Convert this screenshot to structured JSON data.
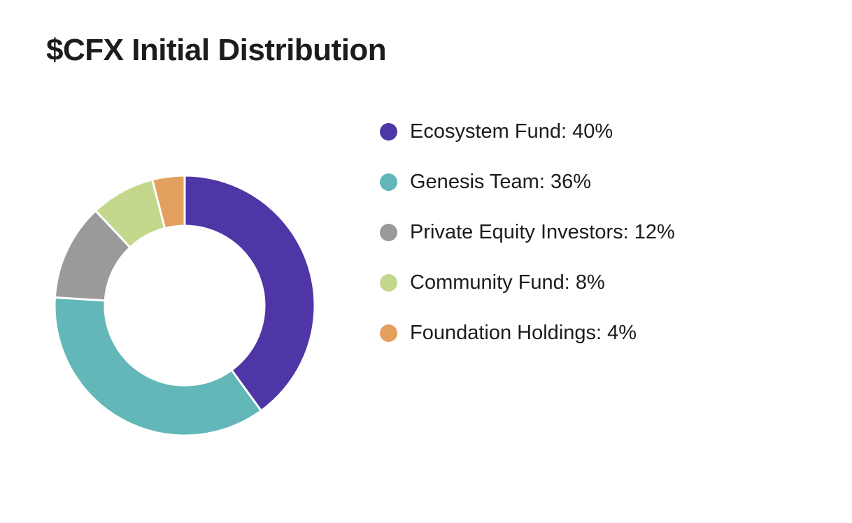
{
  "page": {
    "title": "$CFX Initial Distribution"
  },
  "chart_data": {
    "type": "pie",
    "style": "donut",
    "title": "$CFX Initial Distribution",
    "legend_position": "right",
    "slices": [
      {
        "label": "Ecosystem Fund: 40%",
        "name": "Ecosystem Fund",
        "value": 40,
        "color": "#4e36a6"
      },
      {
        "label": "Genesis Team: 36%",
        "name": "Genesis Team",
        "value": 36,
        "color": "#63b7b8"
      },
      {
        "label": "Private Equity Investors: 12%",
        "name": "Private Equity Investors",
        "value": 12,
        "color": "#9a9a9a"
      },
      {
        "label": "Community Fund: 8%",
        "name": "Community Fund",
        "value": 8,
        "color": "#c3d88c"
      },
      {
        "label": "Foundation Holdings: 4%",
        "name": "Foundation Holdings",
        "value": 4,
        "color": "#e39f5e"
      }
    ]
  }
}
